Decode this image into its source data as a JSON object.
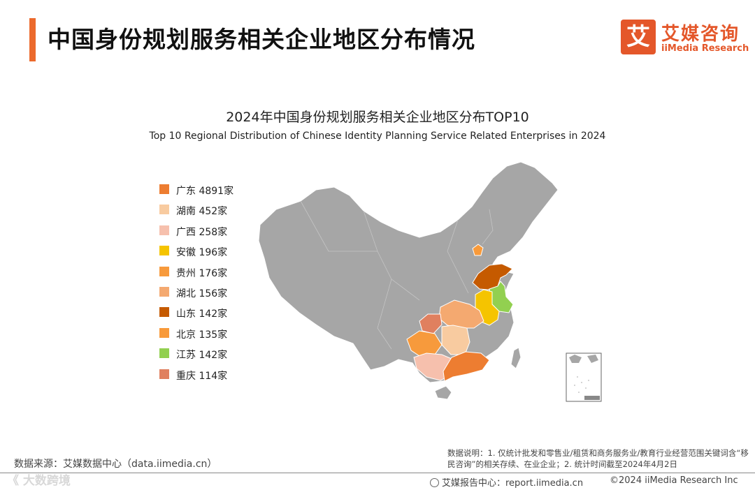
{
  "header": {
    "title": "中国身份规划服务相关企业地区分布情况",
    "logo_mark": "艾",
    "logo_cn": "艾媒咨询",
    "logo_en": "iiMedia Research"
  },
  "map": {
    "title_cn": "2024年中国身份规划服务相关企业地区分布TOP10",
    "title_en": "Top 10 Regional Distribution of Chinese Identity Planning Service Related Enterprises in 2024",
    "base_color": "#a6a6a6"
  },
  "legend": [
    {
      "label": "广东 4891家",
      "province": "广东",
      "count": 4891,
      "color": "#ed7d31"
    },
    {
      "label": "湖南 452家",
      "province": "湖南",
      "count": 452,
      "color": "#f8cba0"
    },
    {
      "label": "广西 258家",
      "province": "广西",
      "count": 258,
      "color": "#f6c0ad"
    },
    {
      "label": "安徽 196家",
      "province": "安徽",
      "count": 196,
      "color": "#f5c400"
    },
    {
      "label": "贵州 176家",
      "province": "贵州",
      "count": 176,
      "color": "#f79a3c"
    },
    {
      "label": "湖北 156家",
      "province": "湖北",
      "count": 156,
      "color": "#f4a970"
    },
    {
      "label": "山东 142家",
      "province": "山东",
      "count": 142,
      "color": "#c55a00"
    },
    {
      "label": "北京 135家",
      "province": "北京",
      "count": 135,
      "color": "#f89a3a"
    },
    {
      "label": "江苏 142家",
      "province": "江苏",
      "count": 142,
      "color": "#92d050"
    },
    {
      "label": "重庆 114家",
      "province": "重庆",
      "count": 114,
      "color": "#e0805f"
    }
  ],
  "footer": {
    "source": "数据来源：艾媒数据中心（data.iimedia.cn）",
    "watermark": "《 大数跨境",
    "notes": "数据说明：1. 仅统计批发和零售业/租赁和商务服务业/教育行业经营范围关键词含“移民咨询”的相关存续、在业企业；2. 统计时间截至2024年4月2日",
    "report": "艾媒报告中心：report.iimedia.cn",
    "copyright": "©2024  iiMedia Research  Inc"
  }
}
